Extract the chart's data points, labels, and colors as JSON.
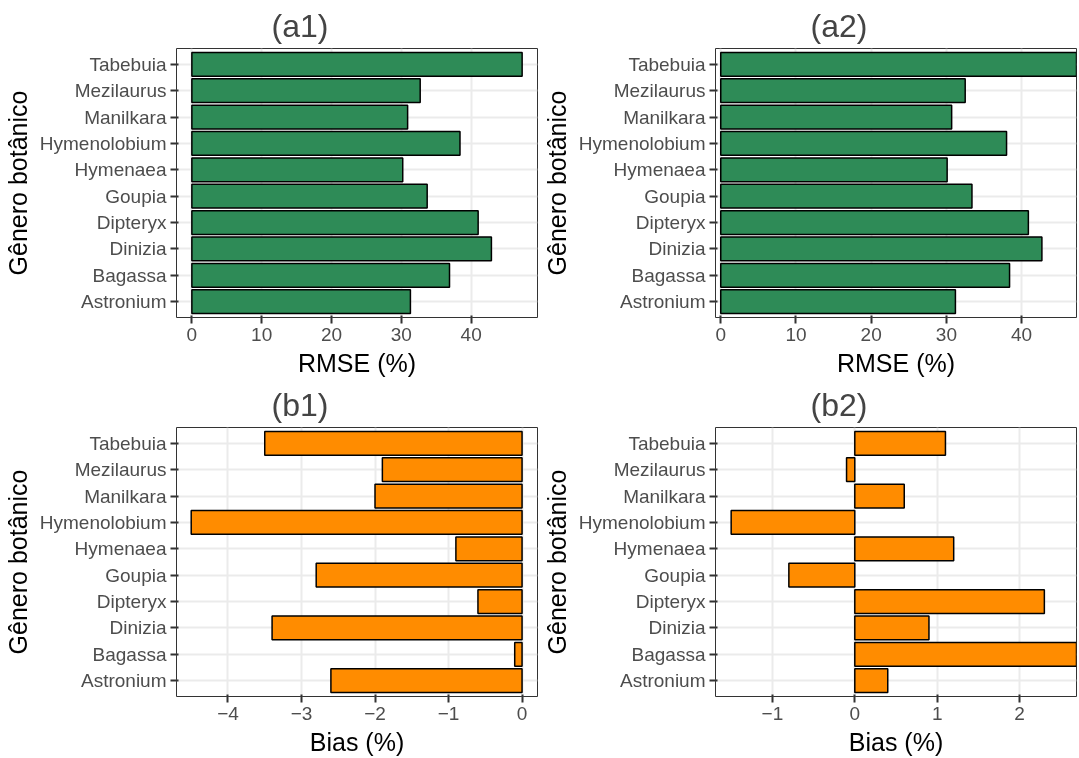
{
  "chart_data": [
    {
      "type": "bar",
      "orientation": "horizontal",
      "title": "(a1)",
      "xlabel": "RMSE (%)",
      "ylabel": "Gênero botânico",
      "categories": [
        "Tabebuia",
        "Mezilaurus",
        "Manilkara",
        "Hymenolobium",
        "Hymenaea",
        "Goupia",
        "Dipteryx",
        "Dinizia",
        "Bagassa",
        "Astronium"
      ],
      "values": [
        47.3,
        32.7,
        30.9,
        38.4,
        30.2,
        33.7,
        41.0,
        42.9,
        36.9,
        31.3
      ],
      "color": "#2e8b57",
      "xlim": [
        -2.2,
        49.5
      ],
      "xticks": [
        0,
        10,
        20,
        30,
        40
      ],
      "grid": true
    },
    {
      "type": "bar",
      "orientation": "horizontal",
      "title": "(a2)",
      "xlabel": "RMSE (%)",
      "ylabel": "Gênero botânico",
      "categories": [
        "Tabebuia",
        "Mezilaurus",
        "Manilkara",
        "Hymenolobium",
        "Hymenaea",
        "Goupia",
        "Dipteryx",
        "Dinizia",
        "Bagassa",
        "Astronium"
      ],
      "values": [
        47.3,
        32.5,
        30.7,
        38.0,
        30.1,
        33.4,
        40.9,
        42.7,
        38.4,
        31.2
      ],
      "color": "#2e8b57",
      "xlim": [
        -0.7,
        47.3
      ],
      "xticks": [
        0,
        10,
        20,
        30,
        40
      ],
      "grid": true
    },
    {
      "type": "bar",
      "orientation": "horizontal",
      "title": "(b1)",
      "xlabel": "Bias (%)",
      "ylabel": "Gênero botânico",
      "categories": [
        "Tabebuia",
        "Mezilaurus",
        "Manilkara",
        "Hymenolobium",
        "Hymenaea",
        "Goupia",
        "Dipteryx",
        "Dinizia",
        "Bagassa",
        "Astronium"
      ],
      "values": [
        -3.5,
        -1.9,
        -2.0,
        -4.5,
        -0.9,
        -2.8,
        -0.6,
        -3.4,
        -0.1,
        -2.6
      ],
      "color": "#ff8c00",
      "xlim": [
        -4.7,
        0.21
      ],
      "xticks": [
        -4,
        -3,
        -2,
        -1,
        0
      ],
      "grid": true
    },
    {
      "type": "bar",
      "orientation": "horizontal",
      "title": "(b2)",
      "xlabel": "Bias (%)",
      "ylabel": "Gênero botânico",
      "categories": [
        "Tabebuia",
        "Mezilaurus",
        "Manilkara",
        "Hymenolobium",
        "Hymenaea",
        "Goupia",
        "Dipteryx",
        "Dinizia",
        "Bagassa",
        "Astronium"
      ],
      "values": [
        1.1,
        -0.1,
        0.6,
        -1.5,
        1.2,
        -0.8,
        2.3,
        0.9,
        2.69,
        0.4
      ],
      "color": "#ff8c00",
      "xlim": [
        -1.69,
        2.69
      ],
      "xticks": [
        -1,
        0,
        1,
        2
      ],
      "grid": true
    }
  ]
}
